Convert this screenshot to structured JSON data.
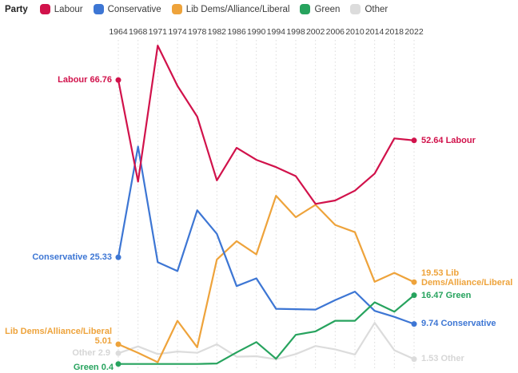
{
  "legend": {
    "title": "Party",
    "items": [
      "Labour",
      "Conservative",
      "Lib Dems/Alliance/Liberal",
      "Green",
      "Other"
    ]
  },
  "chart_data": {
    "type": "line",
    "title": "",
    "x_axis_position": "top",
    "grid": "vertical-dotted",
    "ylim": [
      0,
      80
    ],
    "x": [
      1964,
      1968,
      1971,
      1974,
      1978,
      1982,
      1986,
      1990,
      1994,
      1998,
      2002,
      2006,
      2010,
      2014,
      2018,
      2022
    ],
    "series": [
      {
        "id": "other",
        "name": "Other",
        "color": "#dcdcdc",
        "label_color": "#d6d6d6",
        "values": [
          2.9,
          4.5,
          2.7,
          3.3,
          3.0,
          5.0,
          2.1,
          2.2,
          1.5,
          2.7,
          4.6,
          3.8,
          2.6,
          10.0,
          3.6,
          1.53
        ]
      },
      {
        "id": "libdem",
        "name": "Lib Dems/Alliance/Liberal",
        "color": "#eea33b",
        "label_color": "#eea33b",
        "values": [
          5.01,
          3.0,
          0.8,
          10.5,
          4.3,
          24.8,
          29.1,
          26.0,
          39.7,
          34.7,
          37.6,
          32.9,
          31.2,
          19.6,
          21.7,
          19.53
        ]
      },
      {
        "id": "conservative",
        "name": "Conservative",
        "color": "#3d76d4",
        "label_color": "#3d76d4",
        "values": [
          25.33,
          51.2,
          24.2,
          22.1,
          36.3,
          30.8,
          18.6,
          20.4,
          13.3,
          13.2,
          13.1,
          15.3,
          17.3,
          12.8,
          11.4,
          9.74
        ]
      },
      {
        "id": "green",
        "name": "Green",
        "color": "#27a35e",
        "label_color": "#27a35e",
        "values": [
          0.4,
          0.4,
          0.4,
          0.4,
          0.4,
          0.5,
          3.1,
          5.5,
          1.6,
          7.2,
          8.0,
          10.5,
          10.5,
          14.8,
          12.6,
          16.47
        ]
      },
      {
        "id": "labour",
        "name": "Labour",
        "color": "#d1124b",
        "label_color": "#d1124b",
        "values": [
          66.76,
          43.0,
          74.8,
          65.4,
          58.2,
          43.3,
          50.9,
          48.1,
          46.4,
          44.3,
          37.8,
          38.6,
          40.9,
          44.9,
          53.1,
          52.64
        ]
      }
    ]
  },
  "labels": {
    "labour_start": "Labour 66.76",
    "conservative_start": "Conservative 25.33",
    "libdem_start_line1": "Lib Dems/Alliance/Liberal",
    "libdem_start_line2": "5.01",
    "other_start": "Other 2.9",
    "green_start": "Green 0.4",
    "labour_end": "52.64 Labour",
    "libdem_end": "19.53 Lib Dems/Alliance/Liberal",
    "green_end": "16.47 Green",
    "conservative_end": "9.74 Conservative",
    "other_end": "1.53 Other"
  }
}
